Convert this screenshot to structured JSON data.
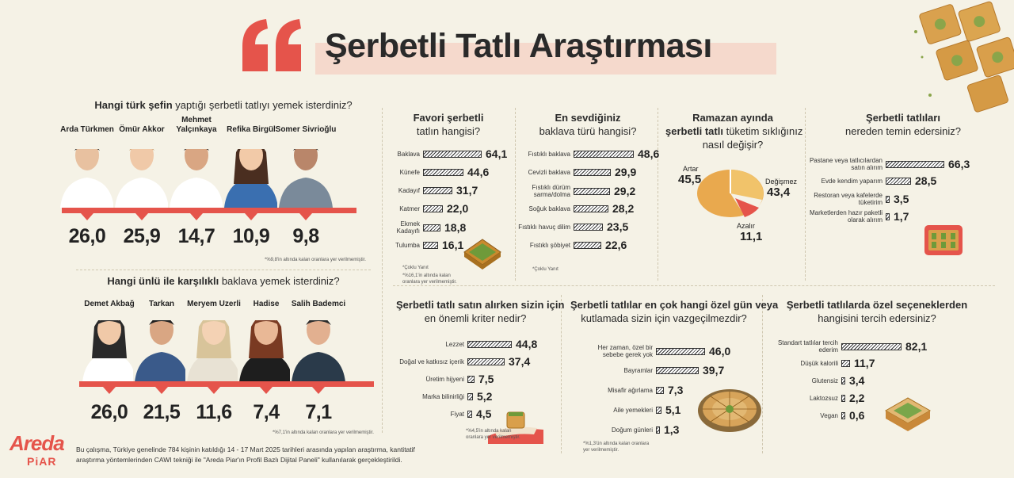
{
  "title": "Şerbetli Tatlı Araştırması",
  "chef": {
    "question_bold": "Hangi türk şefin",
    "question_rest": "yaptığı şerbetli tatlıyı yemek isterdiniz?",
    "people": [
      {
        "name": "Arda Türkmen",
        "value": "26,0"
      },
      {
        "name": "Ömür Akkor",
        "value": "25,9"
      },
      {
        "name": "Mehmet Yalçınkaya",
        "value": "14,7"
      },
      {
        "name": "Refika Birgül",
        "value": "10,9"
      },
      {
        "name": "Somer Sivrioğlu",
        "value": "9,8"
      }
    ],
    "footnote": "*%9,8'in altında kalan oranlara yer verilmemiştir."
  },
  "celeb": {
    "question_bold": "Hangi ünlü ile karşılıklı",
    "question_rest": "baklava yemek isterdiniz?",
    "people": [
      {
        "name": "Demet Akbağ",
        "value": "26,0"
      },
      {
        "name": "Tarkan",
        "value": "21,5"
      },
      {
        "name": "Meryem Uzerli",
        "value": "11,6"
      },
      {
        "name": "Hadise",
        "value": "7,4"
      },
      {
        "name": "Salih Bademci",
        "value": "7,1"
      }
    ],
    "footnote": "*%7,1'in altında kalan oranlara yer verilmemiştir."
  },
  "favori": {
    "q1": "Favori şerbetli",
    "q2": "tatlın hangisi?",
    "rows": [
      {
        "label": "Baklava",
        "value": 64.1,
        "display": "64,1"
      },
      {
        "label": "Künefe",
        "value": 44.6,
        "display": "44,6"
      },
      {
        "label": "Kadayıf",
        "value": 31.7,
        "display": "31,7"
      },
      {
        "label": "Katmer",
        "value": 22.0,
        "display": "22,0"
      },
      {
        "label": "Ekmek Kadayıfı",
        "value": 18.8,
        "display": "18,8"
      },
      {
        "label": "Tulumba",
        "value": 16.1,
        "display": "16,1"
      }
    ],
    "note1": "*Çoklu Yanıt",
    "note2": "*%16,1'in altında kalan oranlara yer verilmemiştir."
  },
  "baklava": {
    "q1": "En sevdiğiniz",
    "q2": "baklava türü hangisi?",
    "rows": [
      {
        "label": "Fıstıklı baklava",
        "value": 48.6,
        "display": "48,6"
      },
      {
        "label": "Cevizli baklava",
        "value": 29.9,
        "display": "29,9"
      },
      {
        "label": "Fıstıklı dürüm sarma/dolma",
        "value": 29.2,
        "display": "29,2"
      },
      {
        "label": "Soğuk baklava",
        "value": 28.2,
        "display": "28,2"
      },
      {
        "label": "Fıstıklı havuç dilim",
        "value": 23.5,
        "display": "23,5"
      },
      {
        "label": "Fıstıklı şöbiyet",
        "value": 22.6,
        "display": "22,6"
      }
    ],
    "note": "*Çoklu Yanıt"
  },
  "ramazan": {
    "q1": "Ramazan ayında",
    "q2": "şerbetli tatlı tüketim sıklığınız",
    "q3": "nasıl değişir?",
    "artar_label": "Artar",
    "artar_value": "45,5",
    "degismez_label": "Değişmez",
    "degismez_value": "43,4",
    "azalir_label": "Azalır",
    "azalir_value": "11,1"
  },
  "temin": {
    "q1": "Şerbetli tatlıları",
    "q2": "nereden temin edersiniz?",
    "rows": [
      {
        "label": "Pastane veya tatlıcılardan satın alırım",
        "value": 66.3,
        "display": "66,3"
      },
      {
        "label": "Evde kendim yaparım",
        "value": 28.5,
        "display": "28,5"
      },
      {
        "label": "Restoran veya kafelerde tüketirim",
        "value": 3.5,
        "display": "3,5"
      },
      {
        "label": "Marketlerden hazır paketli olarak alırım",
        "value": 1.7,
        "display": "1,7"
      }
    ]
  },
  "kriter": {
    "q1": "Şerbetli tatlı satın alırken sizin için",
    "q2": "en önemli kriter nedir?",
    "rows": [
      {
        "label": "Lezzet",
        "value": 44.8,
        "display": "44,8"
      },
      {
        "label": "Doğal ve katkısız içerik",
        "value": 37.4,
        "display": "37,4"
      },
      {
        "label": "Üretim hijyeni",
        "value": 7.5,
        "display": "7,5"
      },
      {
        "label": "Marka bilinirliği",
        "value": 5.2,
        "display": "5,2"
      },
      {
        "label": "Fiyat",
        "value": 4.5,
        "display": "4,5"
      }
    ],
    "note": "*%4,5'in altında kalan oranlara yer verilmemiştir."
  },
  "ozelgun": {
    "q1": "Şerbetli tatlılar en çok hangi özel gün veya",
    "q2": "kutlamada sizin için vazgeçilmezdir?",
    "rows": [
      {
        "label": "Her zaman, özel bir sebebe gerek yok",
        "value": 46.0,
        "display": "46,0"
      },
      {
        "label": "Bayramlar",
        "value": 39.7,
        "display": "39,7"
      },
      {
        "label": "Misafir ağırlama",
        "value": 7.3,
        "display": "7,3"
      },
      {
        "label": "Aile yemekleri",
        "value": 5.1,
        "display": "5,1"
      },
      {
        "label": "Doğum günleri",
        "value": 1.3,
        "display": "1,3"
      }
    ],
    "note": "*%1,3'ün altında kalan oranlara yer verilmemiştir."
  },
  "secenek": {
    "q1": "Şerbetli tatlılarda özel seçeneklerden",
    "q2": "hangisini tercih edersiniz?",
    "rows": [
      {
        "label": "Standart tatlılar tercih ederim",
        "value": 82.1,
        "display": "82,1"
      },
      {
        "label": "Düşük kalorili",
        "value": 11.7,
        "display": "11,7"
      },
      {
        "label": "Glutensiz",
        "value": 3.4,
        "display": "3,4"
      },
      {
        "label": "Laktozsuz",
        "value": 2.2,
        "display": "2,2"
      },
      {
        "label": "Vegan",
        "value": 0.6,
        "display": "0,6"
      }
    ]
  },
  "footer": {
    "logo_top": "Areda",
    "logo_bottom": "PiAR",
    "line1": "Bu çalışma, Türkiye genelinde 784 kişinin katıldığı 14 - 17 Mart 2025 tarihleri arasında yapılan araştırma, kantitatif",
    "line2": "araştırma yöntemlerinden CAWI tekniği ile \"Areda Piar'ın Profil Bazlı Dijital Paneli\" kullanılarak gerçekleştirildi."
  },
  "colors": {
    "accent": "#e5544b",
    "bg": "#f5f2e6",
    "title_band": "#f5d9cc"
  }
}
